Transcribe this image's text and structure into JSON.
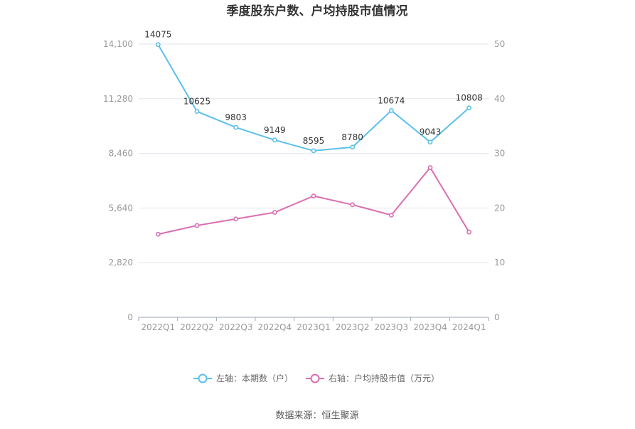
{
  "chart_data": {
    "type": "line",
    "title": "季度股东户数、户均持股市值情况",
    "categories": [
      "2022Q1",
      "2022Q2",
      "2022Q3",
      "2022Q4",
      "2023Q1",
      "2023Q2",
      "2023Q3",
      "2023Q4",
      "2024Q1"
    ],
    "left_axis": {
      "ticks": [
        "0",
        "2,820",
        "5,640",
        "8,460",
        "11,280",
        "14,100"
      ],
      "ylim": [
        0,
        14100
      ]
    },
    "right_axis": {
      "ticks": [
        "0",
        "10",
        "20",
        "30",
        "40",
        "50"
      ],
      "ylim": [
        0,
        50
      ]
    },
    "series": [
      {
        "name": "左轴：本期数（户）",
        "axis": "left",
        "color": "#5bc0eb",
        "values": [
          14075,
          10625,
          9803,
          9149,
          8595,
          8780,
          10674,
          9043,
          10808
        ],
        "labels": [
          "14075",
          "10625",
          "9803",
          "9149",
          "8595",
          "8780",
          "10674",
          "9043",
          "10808"
        ]
      },
      {
        "name": "右轴：户均持股市值（万元）",
        "axis": "right",
        "color": "#d96fb0",
        "values": [
          15.2,
          16.8,
          18.0,
          19.2,
          22.2,
          20.6,
          18.7,
          27.4,
          15.6
        ]
      }
    ],
    "grid": true,
    "legend": "bottom"
  },
  "source": "数据来源：恒生聚源"
}
